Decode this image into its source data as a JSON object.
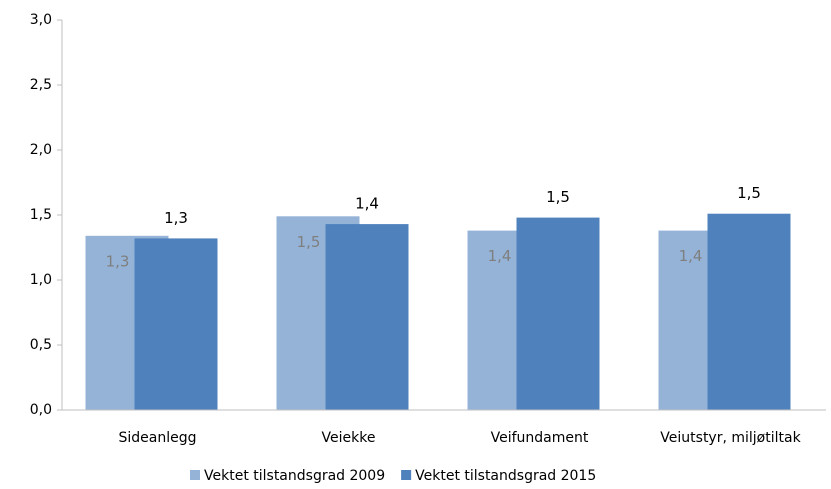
{
  "chart_data": {
    "type": "bar",
    "categories": [
      "Sideanlegg",
      "Veiekke",
      "Veifundament",
      "Veiutstyr, miljøtiltak"
    ],
    "series": [
      {
        "name": "Vektet tilstandsgrad 2009",
        "color": "#95b3d7",
        "values": [
          1.34,
          1.49,
          1.38,
          1.38
        ],
        "value_labels": [
          "1,3",
          "1,5",
          "1,4",
          "1,4"
        ]
      },
      {
        "name": "Vektet tilstandsgrad 2015",
        "color": "#4f81bd",
        "values": [
          1.32,
          1.43,
          1.48,
          1.51
        ],
        "value_labels": [
          "1,3",
          "1,4",
          "1,5",
          "1,5"
        ]
      }
    ],
    "ylim": [
      0,
      3
    ],
    "yticks": [
      {
        "value": 0,
        "label": "0,0"
      },
      {
        "value": 0.5,
        "label": "0,5"
      },
      {
        "value": 1,
        "label": "1,0"
      },
      {
        "value": 1.5,
        "label": "1,5"
      },
      {
        "value": 2,
        "label": "2,0"
      },
      {
        "value": 2.5,
        "label": "2,5"
      },
      {
        "value": 3,
        "label": "3,0"
      }
    ],
    "grid": false,
    "legend": "bottom"
  }
}
